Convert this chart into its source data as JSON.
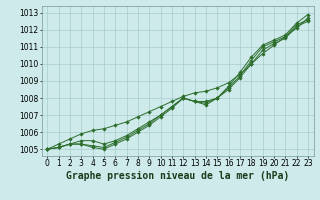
{
  "x": [
    0,
    1,
    2,
    3,
    4,
    5,
    6,
    7,
    8,
    9,
    10,
    11,
    12,
    13,
    14,
    15,
    16,
    17,
    18,
    19,
    20,
    21,
    22,
    23
  ],
  "line1": [
    1005.0,
    1005.1,
    1005.3,
    1005.5,
    1005.5,
    1005.3,
    1005.5,
    1005.8,
    1006.2,
    1006.6,
    1007.0,
    1007.5,
    1008.0,
    1007.8,
    1007.8,
    1008.0,
    1008.5,
    1009.2,
    1010.0,
    1010.8,
    1011.2,
    1011.5,
    1012.2,
    1012.5
  ],
  "line2": [
    1005.0,
    1005.1,
    1005.3,
    1005.3,
    1005.2,
    1005.1,
    1005.4,
    1005.7,
    1006.1,
    1006.5,
    1007.0,
    1007.5,
    1008.0,
    1007.8,
    1007.7,
    1008.0,
    1008.6,
    1009.3,
    1010.2,
    1011.0,
    1011.3,
    1011.6,
    1012.3,
    1012.6
  ],
  "line3": [
    1005.0,
    1005.1,
    1005.3,
    1005.3,
    1005.1,
    1005.0,
    1005.3,
    1005.6,
    1006.0,
    1006.4,
    1006.9,
    1007.4,
    1008.0,
    1007.8,
    1007.6,
    1008.0,
    1008.7,
    1009.5,
    1010.4,
    1011.1,
    1011.4,
    1011.7,
    1012.4,
    1012.9
  ],
  "line4": [
    1005.0,
    1005.3,
    1005.6,
    1005.9,
    1006.1,
    1006.2,
    1006.4,
    1006.6,
    1006.9,
    1007.2,
    1007.5,
    1007.8,
    1008.1,
    1008.3,
    1008.4,
    1008.6,
    1008.9,
    1009.4,
    1010.0,
    1010.6,
    1011.1,
    1011.6,
    1012.1,
    1012.7
  ],
  "line_color": "#2d6e2d",
  "bg_color": "#ceeaea",
  "grid_color": "#aacccc",
  "title": "Graphe pression niveau de la mer (hPa)",
  "ylim": [
    1004.6,
    1013.4
  ],
  "yticks": [
    1005,
    1006,
    1007,
    1008,
    1009,
    1010,
    1011,
    1012,
    1013
  ],
  "tick_fontsize": 5.5,
  "title_fontsize": 7.0
}
